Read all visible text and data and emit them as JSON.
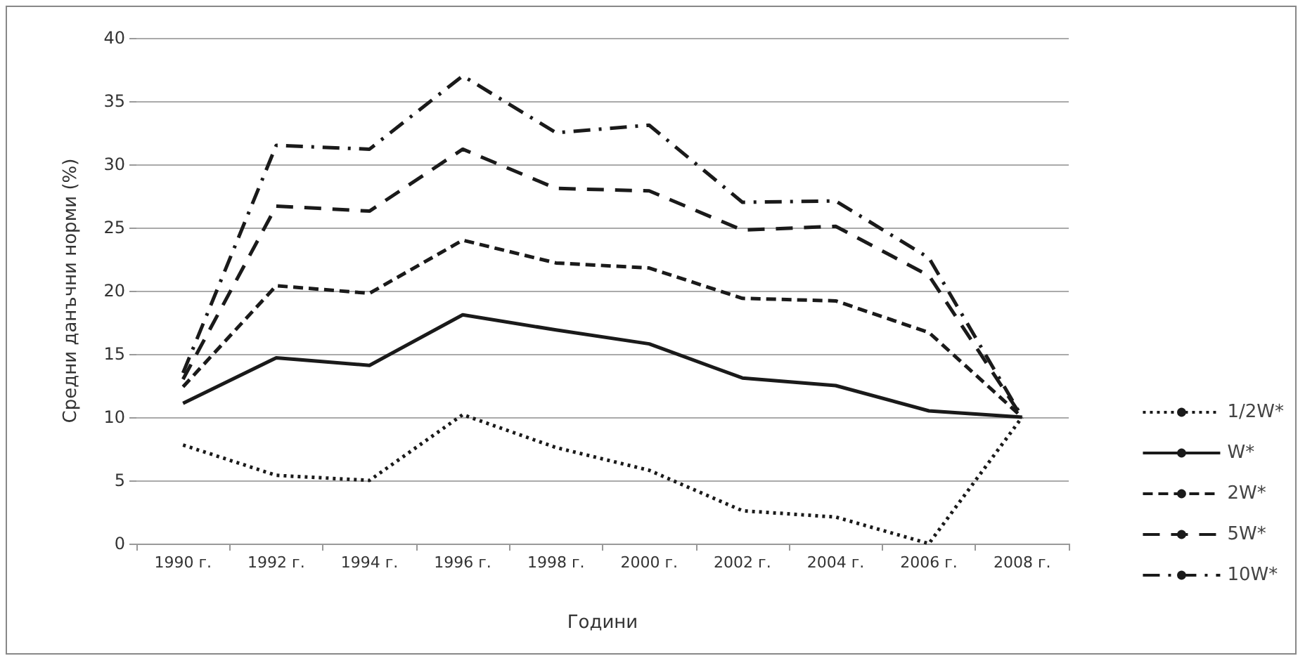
{
  "chart_data": {
    "type": "line",
    "xlabel": "Години",
    "ylabel": "Средни данъчни норми (%)",
    "categories": [
      "1990 г.",
      "1992 г.",
      "1994 г.",
      "1996 г.",
      "1998 г.",
      "2000 г.",
      "2002 г.",
      "2004 г.",
      "2006 г.",
      "2008 г."
    ],
    "series": [
      {
        "name": "1/2W*",
        "color": "#1a1a1a",
        "line_style": "dotted",
        "values": [
          7.8,
          5.4,
          5.0,
          10.2,
          7.6,
          5.8,
          2.6,
          2.1,
          0,
          10
        ]
      },
      {
        "name": "W*",
        "color": "#1a1a1a",
        "line_style": "solid",
        "values": [
          11.1,
          14.7,
          14.1,
          18.1,
          16.9,
          15.8,
          13.1,
          12.5,
          10.5,
          10
        ]
      },
      {
        "name": "2W*",
        "color": "#1a1a1a",
        "line_style": "dashed",
        "values": [
          12.4,
          20.4,
          19.8,
          24.0,
          22.2,
          21.8,
          19.4,
          19.2,
          16.7,
          10
        ]
      },
      {
        "name": "5W*",
        "color": "#1a1a1a",
        "line_style": "longdash",
        "values": [
          13,
          26.7,
          26.3,
          31.2,
          28.1,
          27.9,
          24.8,
          25.1,
          21.2,
          10
        ]
      },
      {
        "name": "10W*",
        "color": "#1a1a1a",
        "line_style": "dashdot",
        "values": [
          13.5,
          31.5,
          31.2,
          37,
          32.5,
          33.1,
          27,
          27.1,
          22.6,
          10
        ]
      }
    ],
    "ylim": [
      0,
      40
    ],
    "yticks": [
      0,
      5,
      10,
      15,
      20,
      25,
      30,
      35,
      40
    ],
    "grid": "y",
    "legend": "right",
    "marker": "none"
  }
}
